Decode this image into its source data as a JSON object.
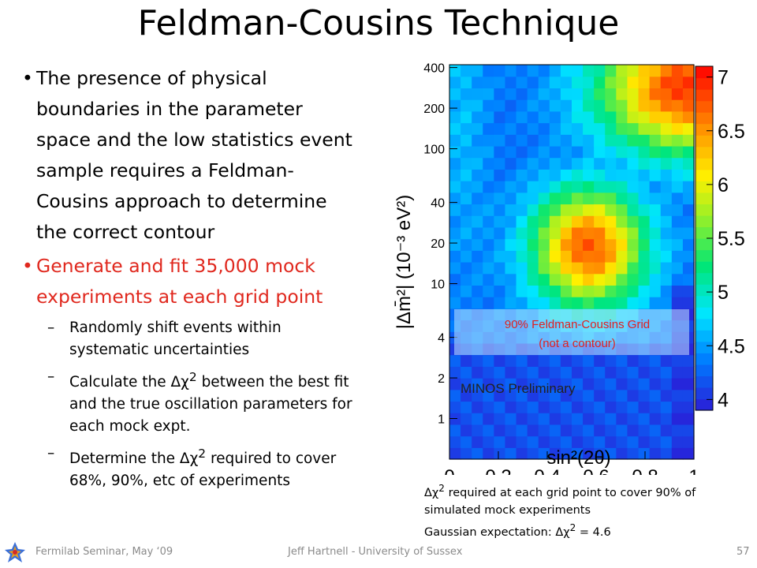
{
  "title": "Feldman-Cousins Technique",
  "bullets": [
    "The presence of physical boundaries in the parameter space and the low statistics event sample requires a Feldman-Cousins approach to determine the correct contour",
    "Generate and fit 35,000 mock experiments at each grid point"
  ],
  "sub_bullets": [
    {
      "pre": "Randomly shift events within systematic uncertainties",
      "sup": "",
      "post": ""
    },
    {
      "pre": "Calculate the Δχ",
      "sup": "2",
      "post": " between the best fit and the true oscillation parameters for each mock expt."
    },
    {
      "pre": "Determine the Δχ",
      "sup": "2",
      "post": " required to cover 68%, 90%, etc of experiments"
    }
  ],
  "caption": {
    "line1_pre": "Δχ",
    "line1_sup": "2",
    "line1_post": " required at each grid point to cover 90% of simulated mock experiments",
    "line2_pre": "Gaussian expectation: Δχ",
    "line2_sup": "2",
    "line2_post": " = 4.6"
  },
  "footer": {
    "left": "Fermilab Seminar, May ‘09",
    "center": "Jeff Hartnell - University of Sussex",
    "page": "57"
  },
  "chart_data": {
    "type": "heatmap",
    "xlabel": "sin²(2θ)",
    "ylabel": "|Δm̄²| (10⁻³ eV²)",
    "x_ticks": [
      "0",
      "0.2",
      "0.4",
      "0.6",
      "0.8",
      "1"
    ],
    "xlim": [
      0,
      1
    ],
    "y_ticks": [
      "1",
      "2",
      "4",
      "10",
      "20",
      "40",
      "100",
      "200",
      "400"
    ],
    "ylim": [
      0.5,
      420
    ],
    "y_scale": "log",
    "colorbar_ticks": [
      "4",
      "4.5",
      "5",
      "5.5",
      "6",
      "6.5",
      "7"
    ],
    "colorbar_range": [
      3.9,
      7.1
    ],
    "annotations": [
      "90% Feldman-Cousins Grid",
      "(not a contour)"
    ],
    "watermark": "MINOS Preliminary",
    "colors": {
      "low": "#2b1cd6",
      "mid": "#00e676",
      "high": "#ff0000"
    }
  }
}
